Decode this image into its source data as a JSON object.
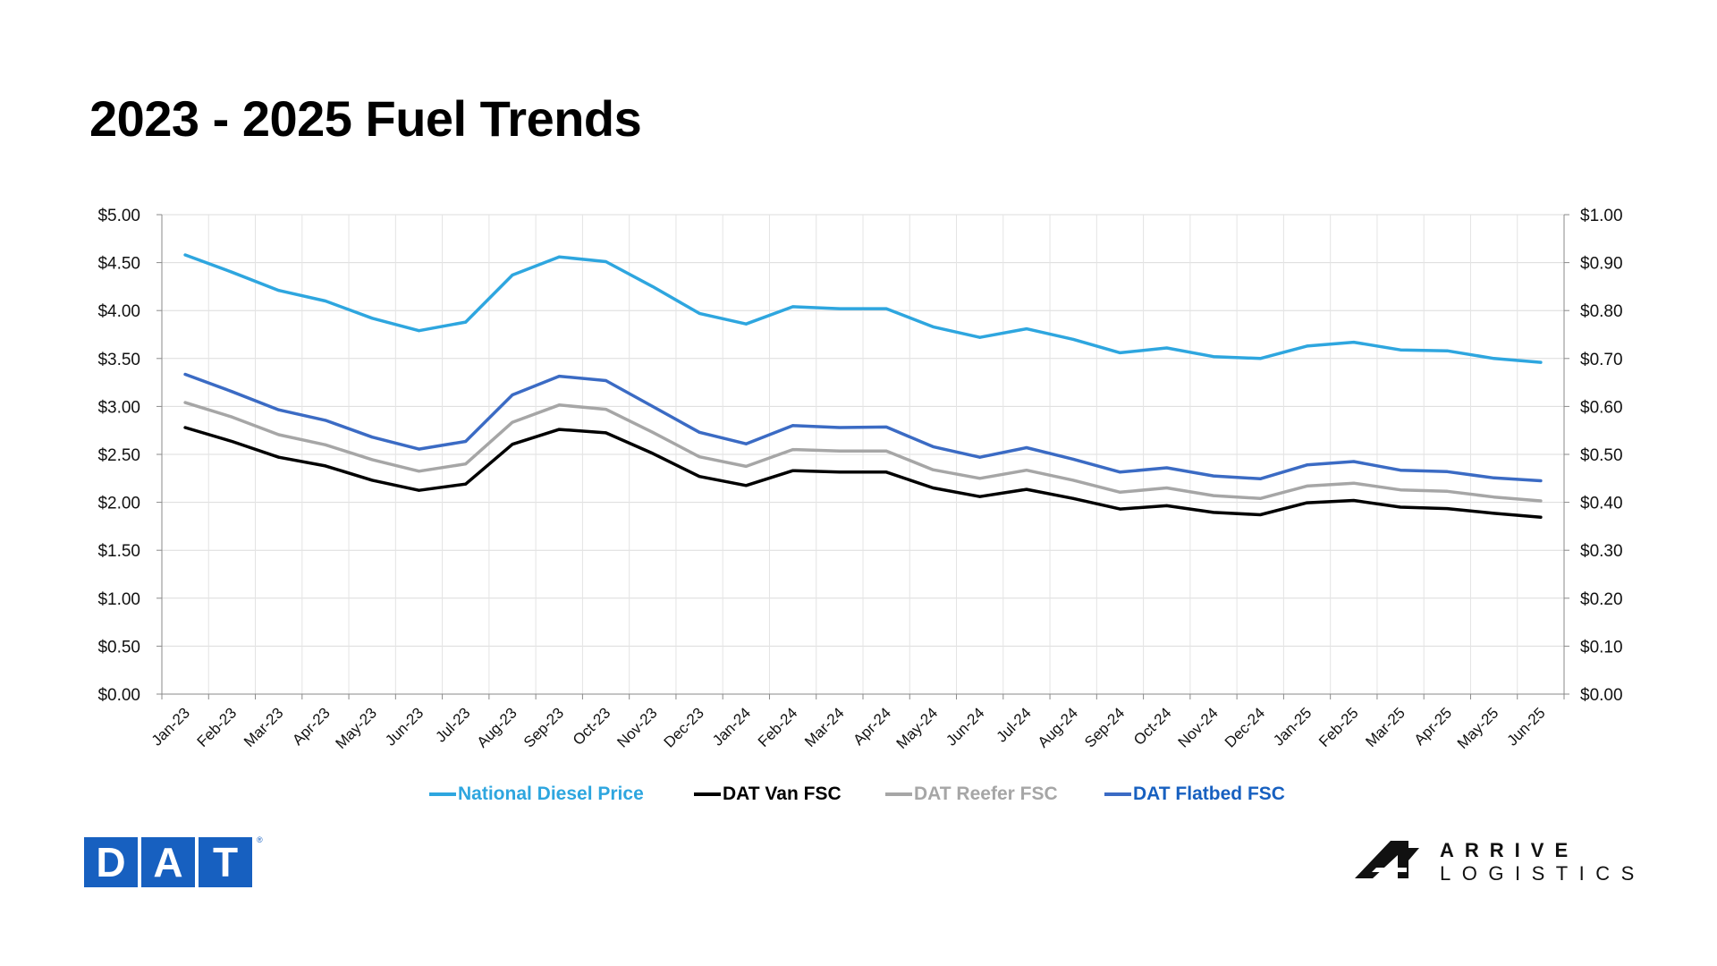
{
  "title": "2023 - 2025 Fuel Trends",
  "chart_data": {
    "type": "line",
    "title": "2023 - 2025 Fuel Trends",
    "x": [
      "Jan-23",
      "Feb-23",
      "Mar-23",
      "Apr-23",
      "May-23",
      "Jun-23",
      "Jul-23",
      "Aug-23",
      "Sep-23",
      "Oct-23",
      "Nov-23",
      "Dec-23",
      "Jan-24",
      "Feb-24",
      "Mar-24",
      "Apr-24",
      "May-24",
      "Jun-24",
      "Jul-24",
      "Aug-24",
      "Sep-24",
      "Oct-24",
      "Nov-24",
      "Dec-24",
      "Jan-25",
      "Feb-25",
      "Mar-25",
      "Apr-25",
      "May-25",
      "Jun-25"
    ],
    "y_left": {
      "range": [
        0,
        5
      ],
      "ticks": [
        "$0.00",
        "$0.50",
        "$1.00",
        "$1.50",
        "$2.00",
        "$2.50",
        "$3.00",
        "$3.50",
        "$4.00",
        "$4.50",
        "$5.00"
      ]
    },
    "y_right": {
      "range": [
        0,
        1
      ],
      "ticks": [
        "$0.00",
        "$0.10",
        "$0.20",
        "$0.30",
        "$0.40",
        "$0.50",
        "$0.60",
        "$0.70",
        "$0.80",
        "$0.90",
        "$1.00"
      ]
    },
    "grid": true,
    "legend": "bottom",
    "series": [
      {
        "name": "National Diesel Price",
        "axis": "left",
        "color": "#2ea6df",
        "values": [
          4.58,
          4.4,
          4.21,
          4.1,
          3.92,
          3.79,
          3.88,
          4.37,
          4.56,
          4.51,
          4.25,
          3.97,
          3.86,
          4.04,
          4.02,
          4.02,
          3.83,
          3.72,
          3.81,
          3.7,
          3.56,
          3.61,
          3.52,
          3.5,
          3.63,
          3.67,
          3.59,
          3.58,
          3.5,
          3.46
        ]
      },
      {
        "name": "DAT Van FSC",
        "axis": "right",
        "color": "#000000",
        "values": [
          0.556,
          0.527,
          0.494,
          0.476,
          0.446,
          0.425,
          0.438,
          0.521,
          0.552,
          0.545,
          0.502,
          0.454,
          0.435,
          0.466,
          0.463,
          0.463,
          0.43,
          0.412,
          0.427,
          0.408,
          0.386,
          0.393,
          0.379,
          0.374,
          0.399,
          0.404,
          0.39,
          0.387,
          0.377,
          0.369
        ]
      },
      {
        "name": "DAT Reefer FSC",
        "axis": "right",
        "color": "#a6a6a6",
        "values": [
          0.608,
          0.578,
          0.541,
          0.52,
          0.489,
          0.465,
          0.48,
          0.567,
          0.603,
          0.594,
          0.546,
          0.495,
          0.475,
          0.51,
          0.507,
          0.507,
          0.468,
          0.45,
          0.467,
          0.446,
          0.421,
          0.43,
          0.414,
          0.408,
          0.434,
          0.44,
          0.426,
          0.423,
          0.411,
          0.403
        ]
      },
      {
        "name": "DAT Flatbed FSC",
        "axis": "right",
        "color": "#3b6bc4",
        "values": [
          0.667,
          0.631,
          0.593,
          0.571,
          0.536,
          0.511,
          0.527,
          0.624,
          0.663,
          0.654,
          0.6,
          0.546,
          0.522,
          0.56,
          0.556,
          0.557,
          0.516,
          0.494,
          0.514,
          0.49,
          0.463,
          0.472,
          0.455,
          0.449,
          0.478,
          0.485,
          0.467,
          0.464,
          0.451,
          0.445
        ]
      }
    ]
  },
  "legend": [
    {
      "label": "National Diesel Price",
      "color": "#2ea6df",
      "text_color": "#2ea6df"
    },
    {
      "label": "DAT Van FSC",
      "color": "#000000",
      "text_color": "#000000"
    },
    {
      "label": "DAT Reefer FSC",
      "color": "#a6a6a6",
      "text_color": "#a6a6a6"
    },
    {
      "label": "DAT Flatbed FSC",
      "color": "#3b6bc4",
      "text_color": "#1760c0"
    }
  ],
  "logos": {
    "dat": {
      "letters": [
        "D",
        "A",
        "T"
      ],
      "color": "#1760c0",
      "mark": "®"
    },
    "arrive": {
      "line1": "ARRIVE",
      "line2": "LOGISTICS"
    }
  }
}
